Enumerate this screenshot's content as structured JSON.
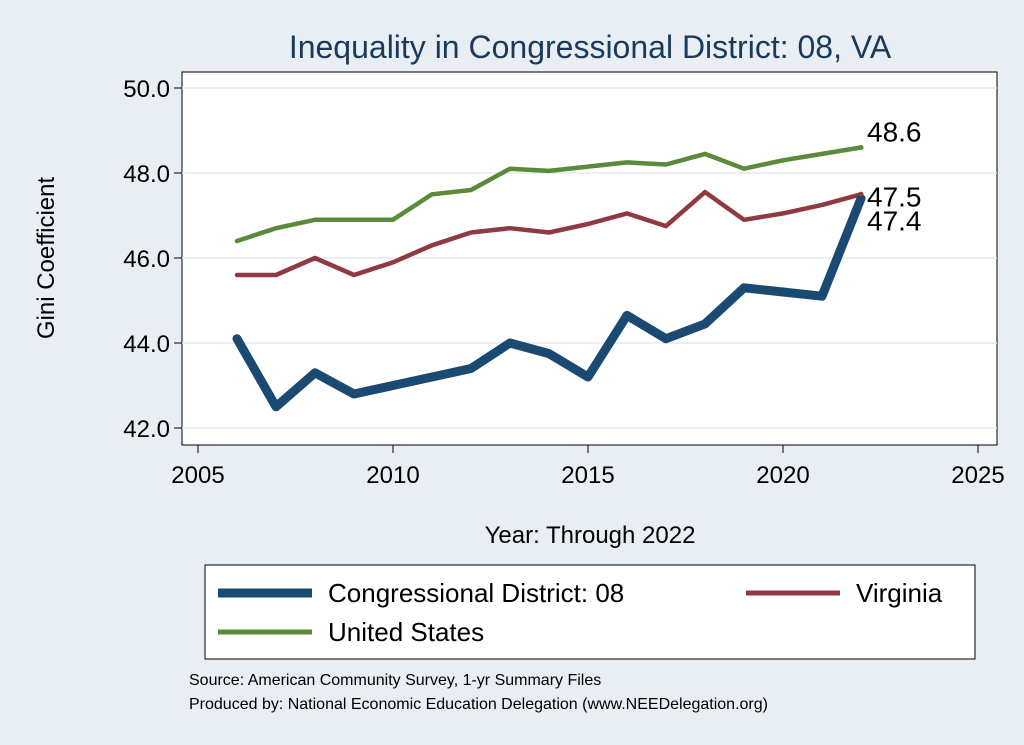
{
  "chart_data": {
    "type": "line",
    "title": "Inequality in Congressional District:  08, VA",
    "xlabel": "Year: Through 2022",
    "ylabel": "Gini Coefficient",
    "xlim": [
      2005,
      2025
    ],
    "ylim": [
      42.0,
      50.0
    ],
    "xticks": [
      2005,
      2010,
      2015,
      2020,
      2025
    ],
    "yticks": [
      42.0,
      44.0,
      46.0,
      48.0,
      50.0
    ],
    "x": [
      2006,
      2007,
      2008,
      2009,
      2010,
      2011,
      2012,
      2013,
      2014,
      2015,
      2016,
      2017,
      2018,
      2019,
      2020,
      2021,
      2022
    ],
    "series": [
      {
        "name": "Congressional District:  08",
        "color": "#1a4a72",
        "values": [
          44.1,
          42.5,
          43.3,
          42.8,
          43.0,
          43.2,
          43.4,
          44.0,
          43.75,
          43.2,
          44.65,
          44.1,
          44.45,
          45.3,
          45.2,
          45.1,
          47.4
        ],
        "end_label": "47.4"
      },
      {
        "name": "Virginia",
        "color": "#8f3a40",
        "values": [
          45.6,
          45.6,
          46.0,
          45.6,
          45.9,
          46.3,
          46.6,
          46.7,
          46.6,
          46.8,
          47.05,
          46.75,
          47.55,
          46.9,
          47.05,
          47.25,
          47.5
        ],
        "end_label": "47.5"
      },
      {
        "name": "United States",
        "color": "#5a8a3a",
        "values": [
          46.4,
          46.7,
          46.9,
          46.9,
          46.9,
          47.5,
          47.6,
          48.1,
          48.05,
          48.15,
          48.25,
          48.2,
          48.45,
          48.1,
          48.3,
          48.45,
          48.6
        ],
        "end_label": "48.6"
      }
    ],
    "legend": {
      "placement": "bottom"
    }
  },
  "footer": {
    "source": "Source: American Community Survey, 1-yr Summary Files",
    "produced_by": "Produced by: National Economic Education Delegation (www.NEEDelegation.org)"
  }
}
